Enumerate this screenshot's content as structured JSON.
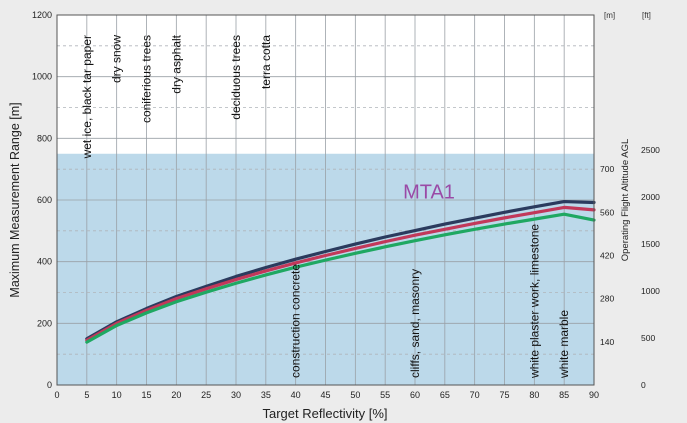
{
  "chart_data": {
    "type": "line",
    "xlabel": "Target Reflectivity [%]",
    "ylabel": "Maximum Measurement Range [m]",
    "right_axis_label": "Operating Flight Altitude AGL",
    "xlim": [
      0,
      90
    ],
    "ylim": [
      0,
      1200
    ],
    "x_ticks": [
      0,
      5,
      10,
      15,
      20,
      25,
      30,
      35,
      40,
      45,
      50,
      55,
      60,
      65,
      70,
      75,
      80,
      85,
      90
    ],
    "y_ticks": [
      0,
      200,
      400,
      600,
      800,
      1000,
      1200
    ],
    "grid": true,
    "shaded_region": {
      "from": 0,
      "to": 750,
      "color": "#bcd9ea"
    },
    "right_axis_m": {
      "unit": "[m]",
      "ticks": [
        140,
        280,
        420,
        560,
        700
      ]
    },
    "right_axis_ft": {
      "unit": "[ft]",
      "ticks": [
        0,
        500,
        1000,
        1500,
        2000,
        2500
      ]
    },
    "annotation": {
      "text": "MTA1",
      "x": 58,
      "y": 605,
      "color": "#9a4aa6"
    },
    "series": [
      {
        "color": "#2b3b5e",
        "x": [
          5,
          10,
          15,
          20,
          25,
          30,
          35,
          40,
          45,
          50,
          55,
          60,
          65,
          70,
          75,
          80,
          85,
          90
        ],
        "values": [
          150,
          205,
          248,
          287,
          320,
          352,
          381,
          408,
          433,
          457,
          480,
          501,
          522,
          541,
          560,
          578,
          595,
          592
        ]
      },
      {
        "color": "#c2385a",
        "x": [
          5,
          10,
          15,
          20,
          25,
          30,
          35,
          40,
          45,
          50,
          55,
          60,
          65,
          70,
          75,
          80,
          85,
          90
        ],
        "values": [
          145,
          200,
          242,
          280,
          312,
          342,
          370,
          396,
          420,
          443,
          465,
          486,
          505,
          524,
          542,
          559,
          576,
          568
        ]
      },
      {
        "color": "#1fa862",
        "x": [
          5,
          10,
          15,
          20,
          25,
          30,
          35,
          40,
          45,
          50,
          55,
          60,
          65,
          70,
          75,
          80,
          85,
          90
        ],
        "values": [
          139,
          193,
          234,
          270,
          301,
          330,
          357,
          382,
          405,
          427,
          448,
          468,
          487,
          505,
          522,
          538,
          554,
          535
        ]
      }
    ],
    "materials": [
      {
        "label": "wet ice, black tar paper",
        "x": 5,
        "position": "top"
      },
      {
        "label": "dry snow",
        "x": 10,
        "position": "top"
      },
      {
        "label": "coniferious trees",
        "x": 15,
        "position": "top"
      },
      {
        "label": "dry asphalt",
        "x": 20,
        "position": "top"
      },
      {
        "label": "deciduous trees",
        "x": 30,
        "position": "top"
      },
      {
        "label": "terra cotta",
        "x": 35,
        "position": "top"
      },
      {
        "label": "construction concrete",
        "x": 40,
        "position": "bottom"
      },
      {
        "label": "cliffs, sand, masonry",
        "x": 60,
        "position": "bottom"
      },
      {
        "label": "white plaster work, limestone",
        "x": 80,
        "position": "bottom"
      },
      {
        "label": "white marble",
        "x": 85,
        "position": "bottom"
      }
    ]
  }
}
